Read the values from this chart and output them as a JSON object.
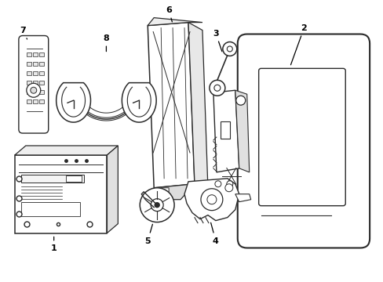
{
  "background_color": "#ffffff",
  "line_color": "#2a2a2a",
  "figsize": [
    4.89,
    3.6
  ],
  "dpi": 100
}
